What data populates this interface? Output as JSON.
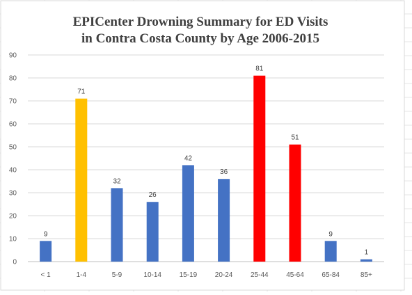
{
  "chart_data": {
    "type": "bar",
    "title_lines": [
      "EPICenter Drowning Summary for ED Visits",
      "in Contra Costa County by Age 2006-2015"
    ],
    "xlabel": "",
    "ylabel": "",
    "categories": [
      "< 1",
      "1-4",
      "5-9",
      "10-14",
      "15-19",
      "20-24",
      "25-44",
      "45-64",
      "65-84",
      "85+"
    ],
    "values": [
      9,
      71,
      32,
      26,
      42,
      36,
      81,
      51,
      9,
      1
    ],
    "colors": [
      "#4472c4",
      "#ffc000",
      "#4472c4",
      "#4472c4",
      "#4472c4",
      "#4472c4",
      "#ff0000",
      "#ff0000",
      "#4472c4",
      "#4472c4"
    ],
    "ylim": [
      0,
      90
    ],
    "yticks": [
      "0",
      "10",
      "20",
      "30",
      "40",
      "50",
      "60",
      "70",
      "80",
      "90"
    ],
    "grid": true,
    "legend": "none",
    "data_labels": true
  }
}
